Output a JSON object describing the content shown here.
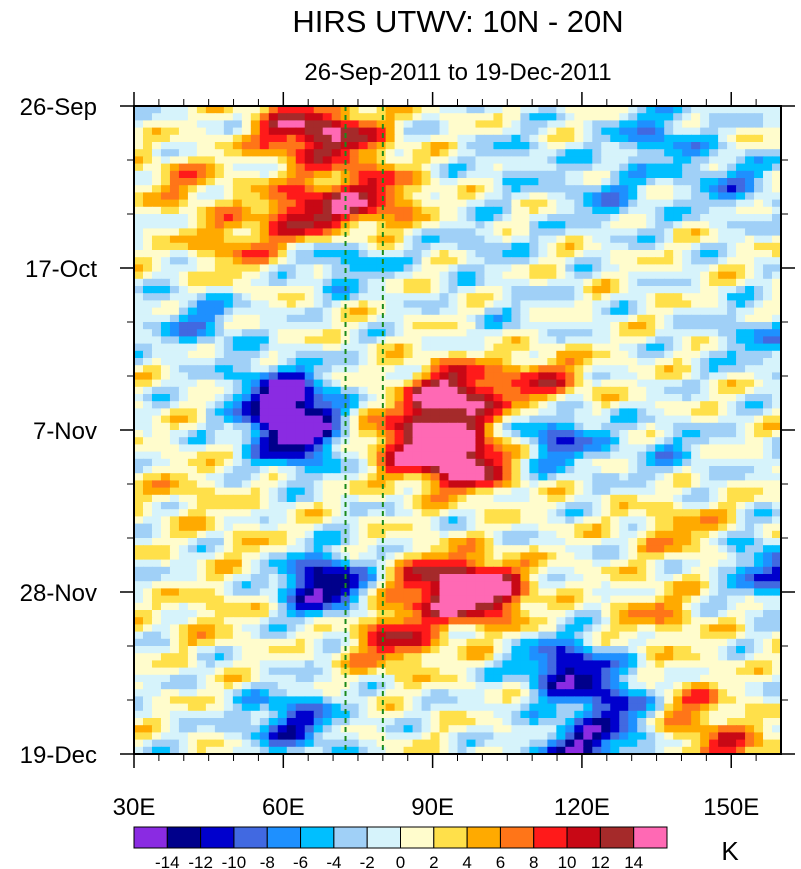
{
  "chart_data": {
    "type": "heatmap",
    "title": "HIRS UTWV: 10N - 20N",
    "subtitle": "26-Sep-2011 to 19-Dec-2011",
    "x_axis": {
      "range": [
        30,
        160
      ],
      "unit": "degrees East longitude",
      "tick_values": [
        30,
        60,
        90,
        120,
        150
      ],
      "tick_labels": [
        "30E",
        "60E",
        "90E",
        "120E",
        "150E"
      ]
    },
    "y_axis": {
      "range_days": [
        0,
        84
      ],
      "direction": "time increases downward",
      "tick_values_days": [
        0,
        21,
        42,
        63,
        84
      ],
      "tick_labels": [
        "26-Sep",
        "17-Oct",
        "7-Nov",
        "28-Nov",
        "19-Dec"
      ]
    },
    "reference_lines": [
      {
        "longitude": 72.5,
        "style": "dashed",
        "color": "#1a8a1a"
      },
      {
        "longitude": 80.0,
        "style": "dashed",
        "color": "#1a8a1a"
      }
    ],
    "colorbar": {
      "unit": "K",
      "levels": [
        -14,
        -12,
        -10,
        -8,
        -6,
        -4,
        -2,
        0,
        2,
        4,
        6,
        8,
        10,
        12,
        14
      ],
      "labels": [
        "-14",
        "-12",
        "-10",
        "-8",
        "-6",
        "-4",
        "-2",
        "0",
        "2",
        "4",
        "6",
        "8",
        "10",
        "12",
        "14"
      ],
      "colors": [
        "#8a2be2",
        "#00008b",
        "#0000cd",
        "#4169e1",
        "#1e90ff",
        "#00bfff",
        "#a0d0f7",
        "#d6f3fb",
        "#fffccc",
        "#ffe04a",
        "#ffaa00",
        "#ff7518",
        "#ff1a1a",
        "#c80815",
        "#a52a2a",
        "#ff69b4"
      ]
    },
    "features": [
      {
        "lon": 62,
        "day": 3,
        "value": 10
      },
      {
        "lon": 72,
        "day": 4,
        "value": 10
      },
      {
        "lon": 65,
        "day": 14,
        "value": 12
      },
      {
        "lon": 78,
        "day": 12,
        "value": 10
      },
      {
        "lon": 50,
        "day": 18,
        "value": 6
      },
      {
        "lon": 40,
        "day": 10,
        "value": 5
      },
      {
        "lon": 95,
        "day": 37,
        "value": 10
      },
      {
        "lon": 112,
        "day": 36,
        "value": 9
      },
      {
        "lon": 97,
        "day": 46,
        "value": 16
      },
      {
        "lon": 85,
        "day": 44,
        "value": 11
      },
      {
        "lon": 92,
        "day": 39,
        "value": 8
      },
      {
        "lon": 100,
        "day": 63,
        "value": 16
      },
      {
        "lon": 90,
        "day": 62,
        "value": 10
      },
      {
        "lon": 82,
        "day": 69,
        "value": 10
      },
      {
        "lon": 140,
        "day": 78,
        "value": 7
      },
      {
        "lon": 150,
        "day": 84,
        "value": 8
      },
      {
        "lon": 140,
        "day": 55,
        "value": 5
      },
      {
        "lon": 135,
        "day": 66,
        "value": 5
      },
      {
        "lon": 60,
        "day": 38,
        "value": -16
      },
      {
        "lon": 63,
        "day": 43,
        "value": -14
      },
      {
        "lon": 68,
        "day": 62,
        "value": -15
      },
      {
        "lon": 62,
        "day": 80,
        "value": -10
      },
      {
        "lon": 43,
        "day": 28,
        "value": -6
      },
      {
        "lon": 115,
        "day": 43,
        "value": -10
      },
      {
        "lon": 117,
        "day": 73,
        "value": -13
      },
      {
        "lon": 128,
        "day": 78,
        "value": -10
      },
      {
        "lon": 120,
        "day": 84,
        "value": -13
      },
      {
        "lon": 150,
        "day": 10,
        "value": -6
      },
      {
        "lon": 135,
        "day": 4,
        "value": -7
      },
      {
        "lon": 100,
        "day": 18,
        "value": -3
      },
      {
        "lon": 125,
        "day": 12,
        "value": -5
      },
      {
        "lon": 155,
        "day": 30,
        "value": -5
      },
      {
        "lon": 158,
        "day": 60,
        "value": -9
      },
      {
        "lon": 107,
        "day": 7,
        "value": -3
      },
      {
        "lon": 72,
        "day": 20,
        "value": -6
      },
      {
        "lon": 138,
        "day": 45,
        "value": -4
      },
      {
        "lon": 108,
        "day": 28,
        "value": -2
      },
      {
        "lon": 40,
        "day": 50,
        "value": 3
      },
      {
        "lon": 45,
        "day": 66,
        "value": 3
      },
      {
        "lon": 55,
        "day": 57,
        "value": 2
      }
    ]
  }
}
